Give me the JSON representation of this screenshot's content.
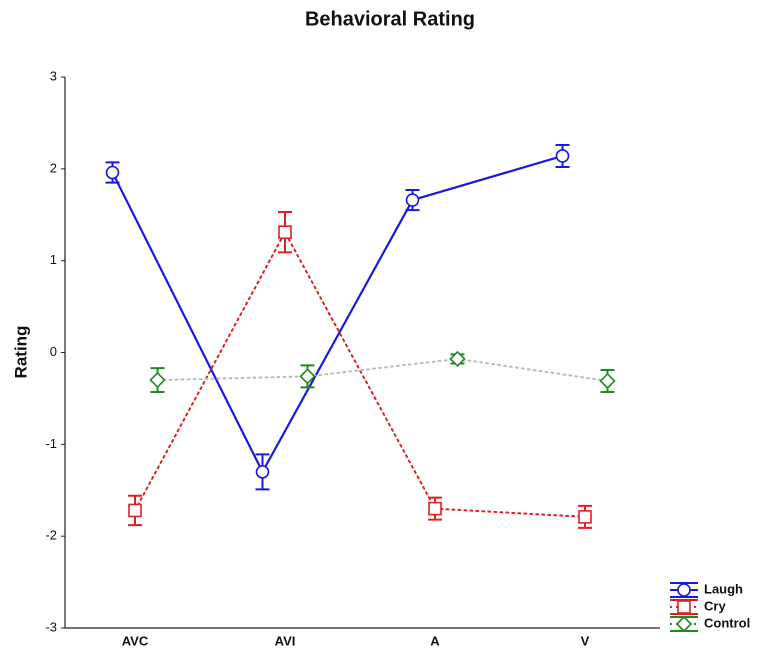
{
  "chart_data": {
    "type": "line",
    "title": "Behavioral Rating",
    "y_label": "Rating",
    "categories": [
      "AVC",
      "AVI",
      "A",
      "V"
    ],
    "series": [
      {
        "name": "Laugh",
        "color": "#1a1adc",
        "line_color": "#1a1adc",
        "line_style": "solid",
        "marker": "circle",
        "values": [
          1.96,
          -1.3,
          1.66,
          2.14
        ],
        "errors": [
          0.11,
          0.19,
          0.11,
          0.12
        ]
      },
      {
        "name": "Cry",
        "color": "#e02020",
        "line_color": "#e02020",
        "line_style": "dotted",
        "marker": "square",
        "values": [
          -1.72,
          1.31,
          -1.7,
          -1.79
        ],
        "errors": [
          0.16,
          0.22,
          0.12,
          0.12
        ]
      },
      {
        "name": "Control",
        "color": "#1f8a1f",
        "line_color": "#bbbbbb",
        "line_style": "dotted",
        "marker": "diamond",
        "values": [
          -0.3,
          -0.26,
          -0.07,
          -0.31
        ],
        "errors": [
          0.13,
          0.12,
          0.05,
          0.12
        ]
      }
    ],
    "ylim": [
      -3,
      3
    ],
    "yticks": [
      -3,
      -2,
      -1,
      0,
      1,
      2,
      3
    ],
    "grid": false,
    "legend": "bottom-right"
  }
}
